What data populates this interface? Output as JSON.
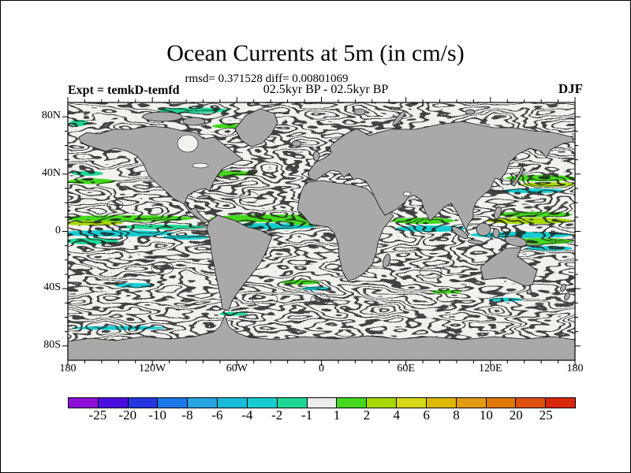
{
  "figure": {
    "title": "Ocean Currents at 5m (in cm/s)",
    "stats_line": "rmsd= 0.371528 diff= 0.00801069",
    "comparison_line": "02.5kyr BP - 02.5kyr BP",
    "experiment_label": "Expt = temkD-temfd",
    "season_label": "DJF"
  },
  "map": {
    "land_color": "#a9a9a9",
    "ocean_color": "#f1f1ee",
    "lat_ticks": [
      {
        "label": "80N",
        "deg": 80
      },
      {
        "label": "40N",
        "deg": 40
      },
      {
        "label": "0",
        "deg": 0
      },
      {
        "label": "40S",
        "deg": -40
      },
      {
        "label": "80S",
        "deg": -80
      }
    ],
    "lon_ticks": [
      {
        "label": "180",
        "deg": -180
      },
      {
        "label": "120W",
        "deg": -120
      },
      {
        "label": "60W",
        "deg": -60
      },
      {
        "label": "0",
        "deg": 0
      },
      {
        "label": "60E",
        "deg": 60
      },
      {
        "label": "120E",
        "deg": 120
      },
      {
        "label": "180",
        "deg": 180
      }
    ]
  },
  "colorbar": {
    "boundary_labels": [
      "-25",
      "-20",
      "-10",
      "-8",
      "-6",
      "-4",
      "-2",
      "-1",
      "1",
      "2",
      "4",
      "6",
      "8",
      "10",
      "20",
      "25"
    ],
    "segment_colors": [
      "#8d0fd8",
      "#4b0ee0",
      "#2436e0",
      "#1a78e8",
      "#27a3e0",
      "#18bcd8",
      "#16ccd0",
      "#1fd795",
      "#ececea",
      "#45d81e",
      "#a8d800",
      "#d8d818",
      "#ddb800",
      "#e29a12",
      "#e07800",
      "#e0500e",
      "#d82808"
    ]
  },
  "chart_data": {
    "type": "heatmap",
    "title": "Ocean Currents at 5m (in cm/s)",
    "units": "cm/s",
    "stats": {
      "rmsd": 0.371528,
      "diff": 0.00801069
    },
    "comparison": "02.5kyr BP - 02.5kyr BP",
    "experiment": "temkD-temfd",
    "season": "DJF",
    "projection": "equirectangular",
    "lon_range": [
      -180,
      180
    ],
    "lat_range": [
      -90,
      90
    ],
    "lon_tick_labels": [
      "180",
      "120W",
      "60W",
      "0",
      "60E",
      "120E",
      "180"
    ],
    "lat_tick_labels": [
      "80N",
      "40N",
      "0",
      "40S",
      "80S"
    ],
    "color_levels": [
      -25,
      -20,
      -10,
      -8,
      -6,
      -4,
      -2,
      -1,
      1,
      2,
      4,
      6,
      8,
      10,
      20,
      25
    ],
    "legend_position": "bottom",
    "description": "Difference field of ocean current speed at 5 m depth between two 02.5kyr BP experiments; most of the ocean is near zero (light gray) with thin black contour streamlines; green/cyan/yellow anomaly bands concentrate along the equatorial current systems and western boundary currents; continents shown in gray."
  }
}
